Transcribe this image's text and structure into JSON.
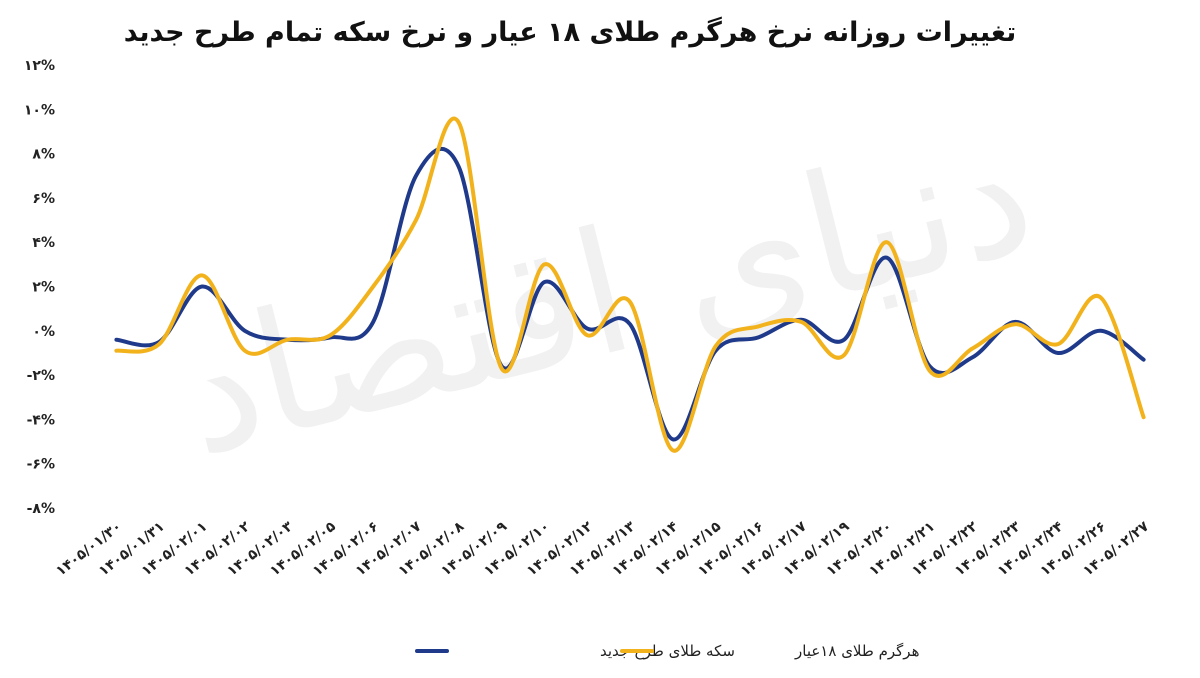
{
  "chart_data": {
    "type": "line",
    "title": "تغییرات روزانه نرخ هرگرم طلای ۱۸ عیار و نرخ سکه تمام طرح جدید",
    "watermark": "دنیای اقتصاد",
    "categories": [
      "۱۴۰۵/۰۱/۳۰",
      "۱۴۰۵/۰۱/۳۱",
      "۱۴۰۵/۰۲/۰۱",
      "۱۴۰۵/۰۲/۰۲",
      "۱۴۰۵/۰۲/۰۳",
      "۱۴۰۵/۰۲/۰۵",
      "۱۴۰۵/۰۲/۰۶",
      "۱۴۰۵/۰۲/۰۷",
      "۱۴۰۵/۰۲/۰۸",
      "۱۴۰۵/۰۲/۰۹",
      "۱۴۰۵/۰۲/۱۰",
      "۱۴۰۵/۰۲/۱۲",
      "۱۴۰۵/۰۲/۱۳",
      "۱۴۰۵/۰۲/۱۴",
      "۱۴۰۵/۰۲/۱۵",
      "۱۴۰۵/۰۲/۱۶",
      "۱۴۰۵/۰۲/۱۷",
      "۱۴۰۵/۰۲/۱۹",
      "۱۴۰۵/۰۲/۲۰",
      "۱۴۰۵/۰۲/۲۱",
      "۱۴۰۵/۰۲/۲۲",
      "۱۴۰۵/۰۲/۲۳",
      "۱۴۰۵/۰۲/۲۴",
      "۱۴۰۵/۰۲/۲۶",
      "۱۴۰۵/۰۲/۲۷"
    ],
    "series": [
      {
        "name": "سکه طلای طرح جدید",
        "color": "#1f3a8a",
        "values": [
          -0.4,
          -0.5,
          2.0,
          0.0,
          -0.4,
          -0.3,
          0.4,
          7.0,
          7.4,
          -1.6,
          2.2,
          0.1,
          0.3,
          -4.9,
          -0.9,
          -0.3,
          0.5,
          -0.4,
          3.3,
          -1.6,
          -1.2,
          0.4,
          -1.0,
          0.0,
          -1.3
        ]
      },
      {
        "name": "هرگرم طلای ۱۸عیار",
        "color": "#f2b21c",
        "values": [
          -0.9,
          -0.6,
          2.5,
          -0.9,
          -0.4,
          -0.2,
          2.0,
          5.0,
          9.4,
          -1.7,
          3.0,
          -0.2,
          1.3,
          -5.4,
          -0.7,
          0.2,
          0.4,
          -1.1,
          4.0,
          -1.8,
          -0.8,
          0.3,
          -0.6,
          1.5,
          -3.9
        ]
      }
    ],
    "yticks": [
      "۱۲%",
      "۱۰%",
      "۸%",
      "۶%",
      "۴%",
      "۲%",
      "۰%",
      "-۲%",
      "-۴%",
      "-۶%",
      "-۸%"
    ],
    "ylim": [
      -8,
      12
    ],
    "grid": false,
    "legend": "bottom-center"
  }
}
